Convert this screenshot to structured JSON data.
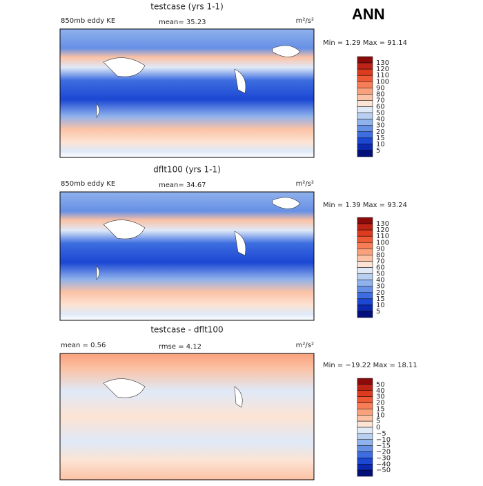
{
  "header": {
    "title": "ANN"
  },
  "panels": [
    {
      "title": "testcase (yrs 1-1)",
      "left_label": "850mb eddy KE",
      "center_label": "mean=  35.23",
      "units": "m²/s²",
      "minmax": "Min =    1.29 Max =   91.14",
      "colorbar": {
        "labels": [
          "130",
          "120",
          "110",
          "100",
          "90",
          "80",
          "70",
          "60",
          "50",
          "40",
          "30",
          "20",
          "15",
          "10",
          "5"
        ],
        "colors": [
          "#8b0a0a",
          "#bd2416",
          "#dc3b1e",
          "#ee5a36",
          "#f67d56",
          "#f9a07c",
          "#fbc2a5",
          "#fde3d3",
          "#dfe9f8",
          "#b8cff1",
          "#8fb1ec",
          "#6690e6",
          "#3d6de0",
          "#1b47d3",
          "#0b28ae",
          "#04107a"
        ]
      }
    },
    {
      "title": "dflt100 (yrs 1-1)",
      "left_label": "850mb eddy KE",
      "center_label": "mean=  34.67",
      "units": "m²/s²",
      "minmax": "Min =    1.39 Max =   93.24",
      "colorbar": {
        "labels": [
          "130",
          "120",
          "110",
          "100",
          "90",
          "80",
          "70",
          "60",
          "50",
          "40",
          "30",
          "20",
          "15",
          "10",
          "5"
        ],
        "colors": [
          "#8b0a0a",
          "#bd2416",
          "#dc3b1e",
          "#ee5a36",
          "#f67d56",
          "#f9a07c",
          "#fbc2a5",
          "#fde3d3",
          "#dfe9f8",
          "#b8cff1",
          "#8fb1ec",
          "#6690e6",
          "#3d6de0",
          "#1b47d3",
          "#0b28ae",
          "#04107a"
        ]
      }
    },
    {
      "title": "testcase - dflt100",
      "left_label": "mean =    0.56",
      "center_label": "rmse =    4.12",
      "units": "m²/s²",
      "minmax": "Min = −19.22 Max =   18.11",
      "colorbar": {
        "labels": [
          "50",
          "40",
          "30",
          "20",
          "15",
          "10",
          "5",
          "0",
          "−5",
          "−10",
          "−15",
          "−20",
          "−30",
          "−40",
          "−50"
        ],
        "colors": [
          "#8b0a0a",
          "#bd2416",
          "#dc3b1e",
          "#ee5a36",
          "#f67d56",
          "#f9a07c",
          "#fbc2a5",
          "#fde3d3",
          "#dfe9f8",
          "#b8cff1",
          "#8fb1ec",
          "#6690e6",
          "#3d6de0",
          "#1b47d3",
          "#0b28ae",
          "#04107a"
        ]
      }
    }
  ]
}
